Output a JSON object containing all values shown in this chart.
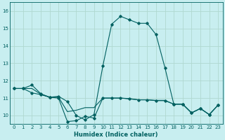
{
  "xlabel": "Humidex (Indice chaleur)",
  "bg_color": "#c8eef0",
  "grid_color": "#b0d8d0",
  "line_color": "#006060",
  "xlim": [
    -0.5,
    23.5
  ],
  "ylim": [
    9.5,
    16.5
  ],
  "yticks": [
    10,
    11,
    12,
    13,
    14,
    15,
    16
  ],
  "xticks": [
    0,
    1,
    2,
    3,
    4,
    5,
    6,
    7,
    8,
    9,
    10,
    11,
    12,
    13,
    14,
    15,
    16,
    17,
    18,
    19,
    20,
    21,
    22,
    23
  ],
  "line_max": {
    "x": [
      0,
      1,
      2,
      3,
      4,
      5,
      6,
      7,
      8,
      9,
      10,
      11,
      12,
      13,
      14,
      15,
      16,
      17,
      18,
      19,
      20,
      21,
      22,
      23
    ],
    "y": [
      11.55,
      11.55,
      11.75,
      11.25,
      11.05,
      11.1,
      10.8,
      10.0,
      9.75,
      10.05,
      12.85,
      15.25,
      15.7,
      15.5,
      15.3,
      15.3,
      14.65,
      12.75,
      10.65,
      10.65,
      10.15,
      10.4,
      10.05,
      10.6
    ]
  },
  "line_min": {
    "x": [
      0,
      1,
      2,
      3,
      4,
      5,
      6,
      7,
      8,
      9,
      10,
      11,
      12,
      13,
      14,
      15,
      16,
      17,
      18,
      19,
      20,
      21,
      22,
      23
    ],
    "y": [
      11.55,
      11.55,
      11.3,
      11.2,
      11.05,
      11.0,
      9.65,
      9.7,
      9.95,
      9.85,
      11.0,
      11.0,
      11.0,
      10.95,
      10.9,
      10.9,
      10.85,
      10.85,
      10.65,
      10.65,
      10.15,
      10.4,
      10.05,
      10.6
    ]
  },
  "line_mean": {
    "x": [
      0,
      1,
      2,
      3,
      4,
      5,
      6,
      7,
      8,
      9,
      10,
      11,
      12,
      13,
      14,
      15,
      16,
      17,
      18,
      19,
      20,
      21,
      22,
      23
    ],
    "y": [
      11.55,
      11.55,
      11.55,
      11.22,
      11.05,
      11.05,
      10.22,
      10.3,
      10.45,
      10.45,
      11.0,
      11.0,
      11.0,
      10.97,
      10.9,
      10.9,
      10.87,
      10.87,
      10.65,
      10.65,
      10.15,
      10.4,
      10.05,
      10.6
    ]
  },
  "xlabel_fontsize": 6.0,
  "tick_fontsize": 5.0
}
